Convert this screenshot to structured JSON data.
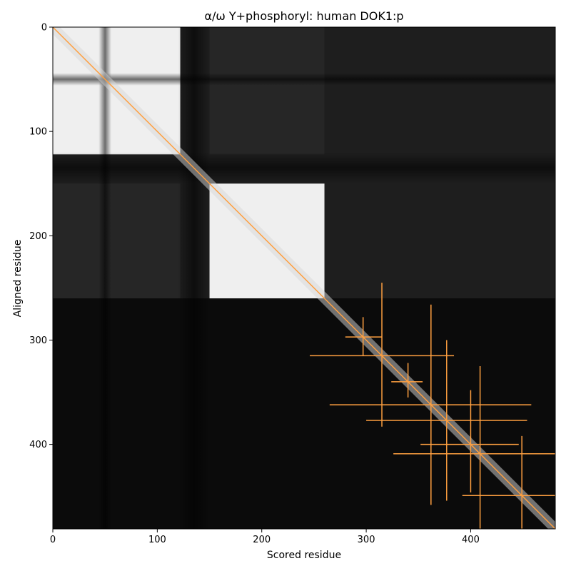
{
  "chart_data": {
    "type": "heatmap",
    "title": "α/ω Y+phosphoryl: human DOK1:p",
    "xlabel": "Scored residue",
    "ylabel": "Aligned residue",
    "xlim": [
      0,
      481
    ],
    "ylim": [
      481,
      0
    ],
    "x_ticks": [
      "0",
      "100",
      "200",
      "300",
      "400"
    ],
    "y_ticks": [
      "0",
      "100",
      "200",
      "300",
      "400"
    ],
    "colormap": "greyscale",
    "grid": false,
    "domains": [
      {
        "start": 0,
        "end": 122
      },
      {
        "start": 150,
        "end": 260
      }
    ],
    "dark_gaps": [
      {
        "start": 44,
        "end": 56
      },
      {
        "start": 120,
        "end": 150
      }
    ],
    "diagonal_color": "#ffa040",
    "phospho_sites": [
      {
        "residue": 297,
        "y_lo": 278,
        "y_hi": 315,
        "x_lo": 280,
        "x_hi": 315
      },
      {
        "residue": 315,
        "y_lo": 245,
        "y_hi": 383,
        "x_lo": 246,
        "x_hi": 384
      },
      {
        "residue": 340,
        "y_lo": 322,
        "y_hi": 355,
        "x_lo": 324,
        "x_hi": 354
      },
      {
        "residue": 362,
        "y_lo": 266,
        "y_hi": 458,
        "x_lo": 265,
        "x_hi": 458
      },
      {
        "residue": 377,
        "y_lo": 300,
        "y_hi": 454,
        "x_lo": 300,
        "x_hi": 454
      },
      {
        "residue": 400,
        "y_lo": 348,
        "y_hi": 446,
        "x_lo": 352,
        "x_hi": 446
      },
      {
        "residue": 409,
        "y_lo": 325,
        "y_hi": 481,
        "x_lo": 326,
        "x_hi": 481
      },
      {
        "residue": 449,
        "y_lo": 392,
        "y_hi": 481,
        "x_lo": 392,
        "x_hi": 481
      }
    ]
  }
}
